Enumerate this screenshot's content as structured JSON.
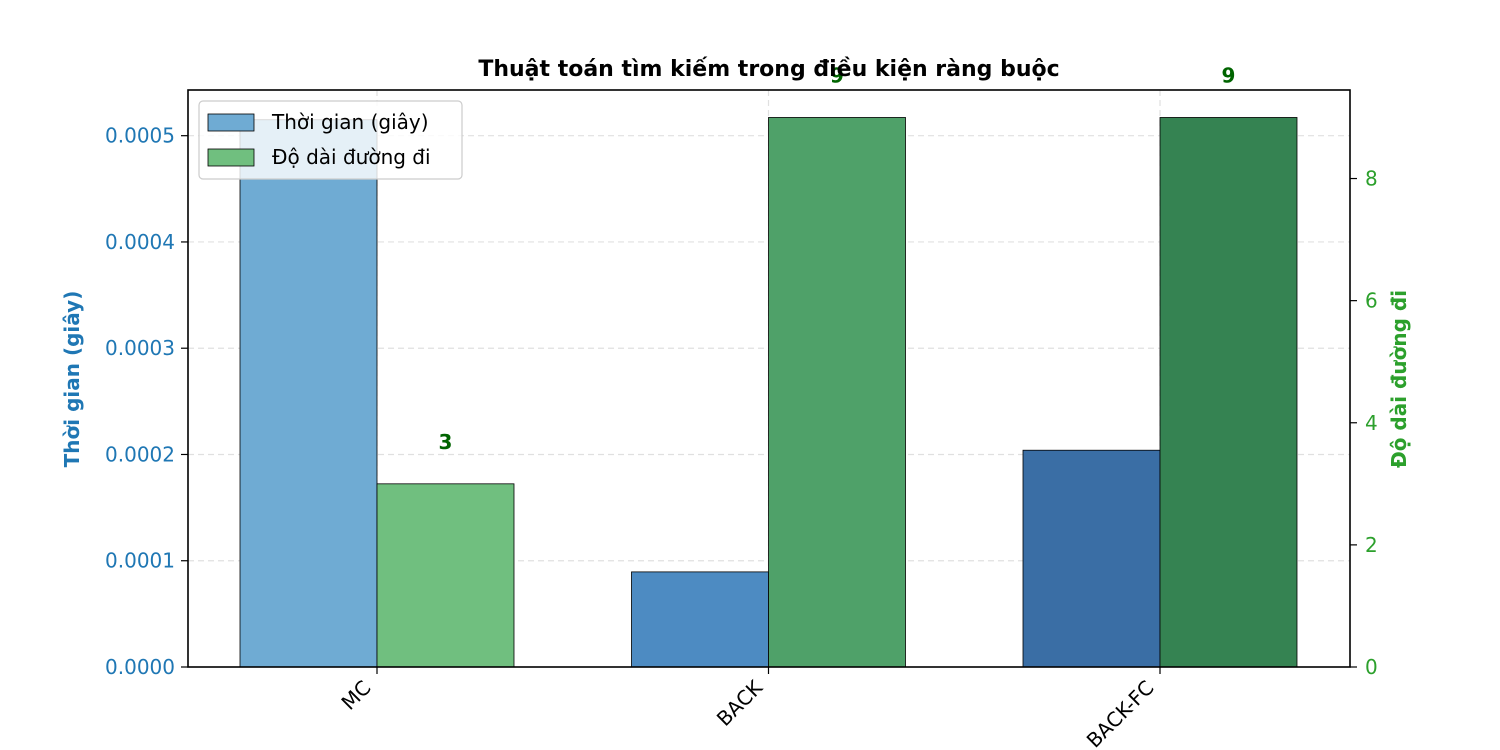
{
  "chart_data": {
    "type": "bar",
    "title": "Thuật toán tìm kiếm trong điều kiện ràng buộc",
    "categories": [
      "MC",
      "BACK",
      "BACK-FC"
    ],
    "series": [
      {
        "name": "Thời gian (giây)",
        "axis": "left",
        "values": [
          0.000515,
          8.95e-05,
          0.000204
        ],
        "bar_colors": [
          "#6fabd3",
          "#4d8bc2",
          "#3a6ea5"
        ],
        "legend_color": "#6fabd3"
      },
      {
        "name": "Độ dài đường đi",
        "axis": "right",
        "values": [
          3,
          9,
          9
        ],
        "data_labels": [
          "3",
          "9",
          "9"
        ],
        "bar_colors": [
          "#70bf7f",
          "#4fa169",
          "#358352"
        ],
        "legend_color": "#70bf7f"
      }
    ],
    "ylabel_left": "Thời gian (giây)",
    "ylabel_right": "Độ dài đường đi",
    "ylim_left": [
      0,
      0.000543
    ],
    "ylim_right": [
      0,
      9.45
    ],
    "yticks_left": [
      "0.0000",
      "0.0001",
      "0.0002",
      "0.0003",
      "0.0004",
      "0.0005"
    ],
    "yticks_left_values": [
      0,
      0.0001,
      0.0002,
      0.0003,
      0.0004,
      0.0005
    ],
    "yticks_right": [
      "0",
      "2",
      "4",
      "6",
      "8"
    ],
    "yticks_right_values": [
      0,
      2,
      4,
      6,
      8
    ],
    "grid": true,
    "legend_position": "upper-left",
    "colors": {
      "left_axis": "#1f77b4",
      "right_axis": "#2ca02c",
      "data_label": "#006400",
      "grid": "#e0e0e0"
    }
  }
}
